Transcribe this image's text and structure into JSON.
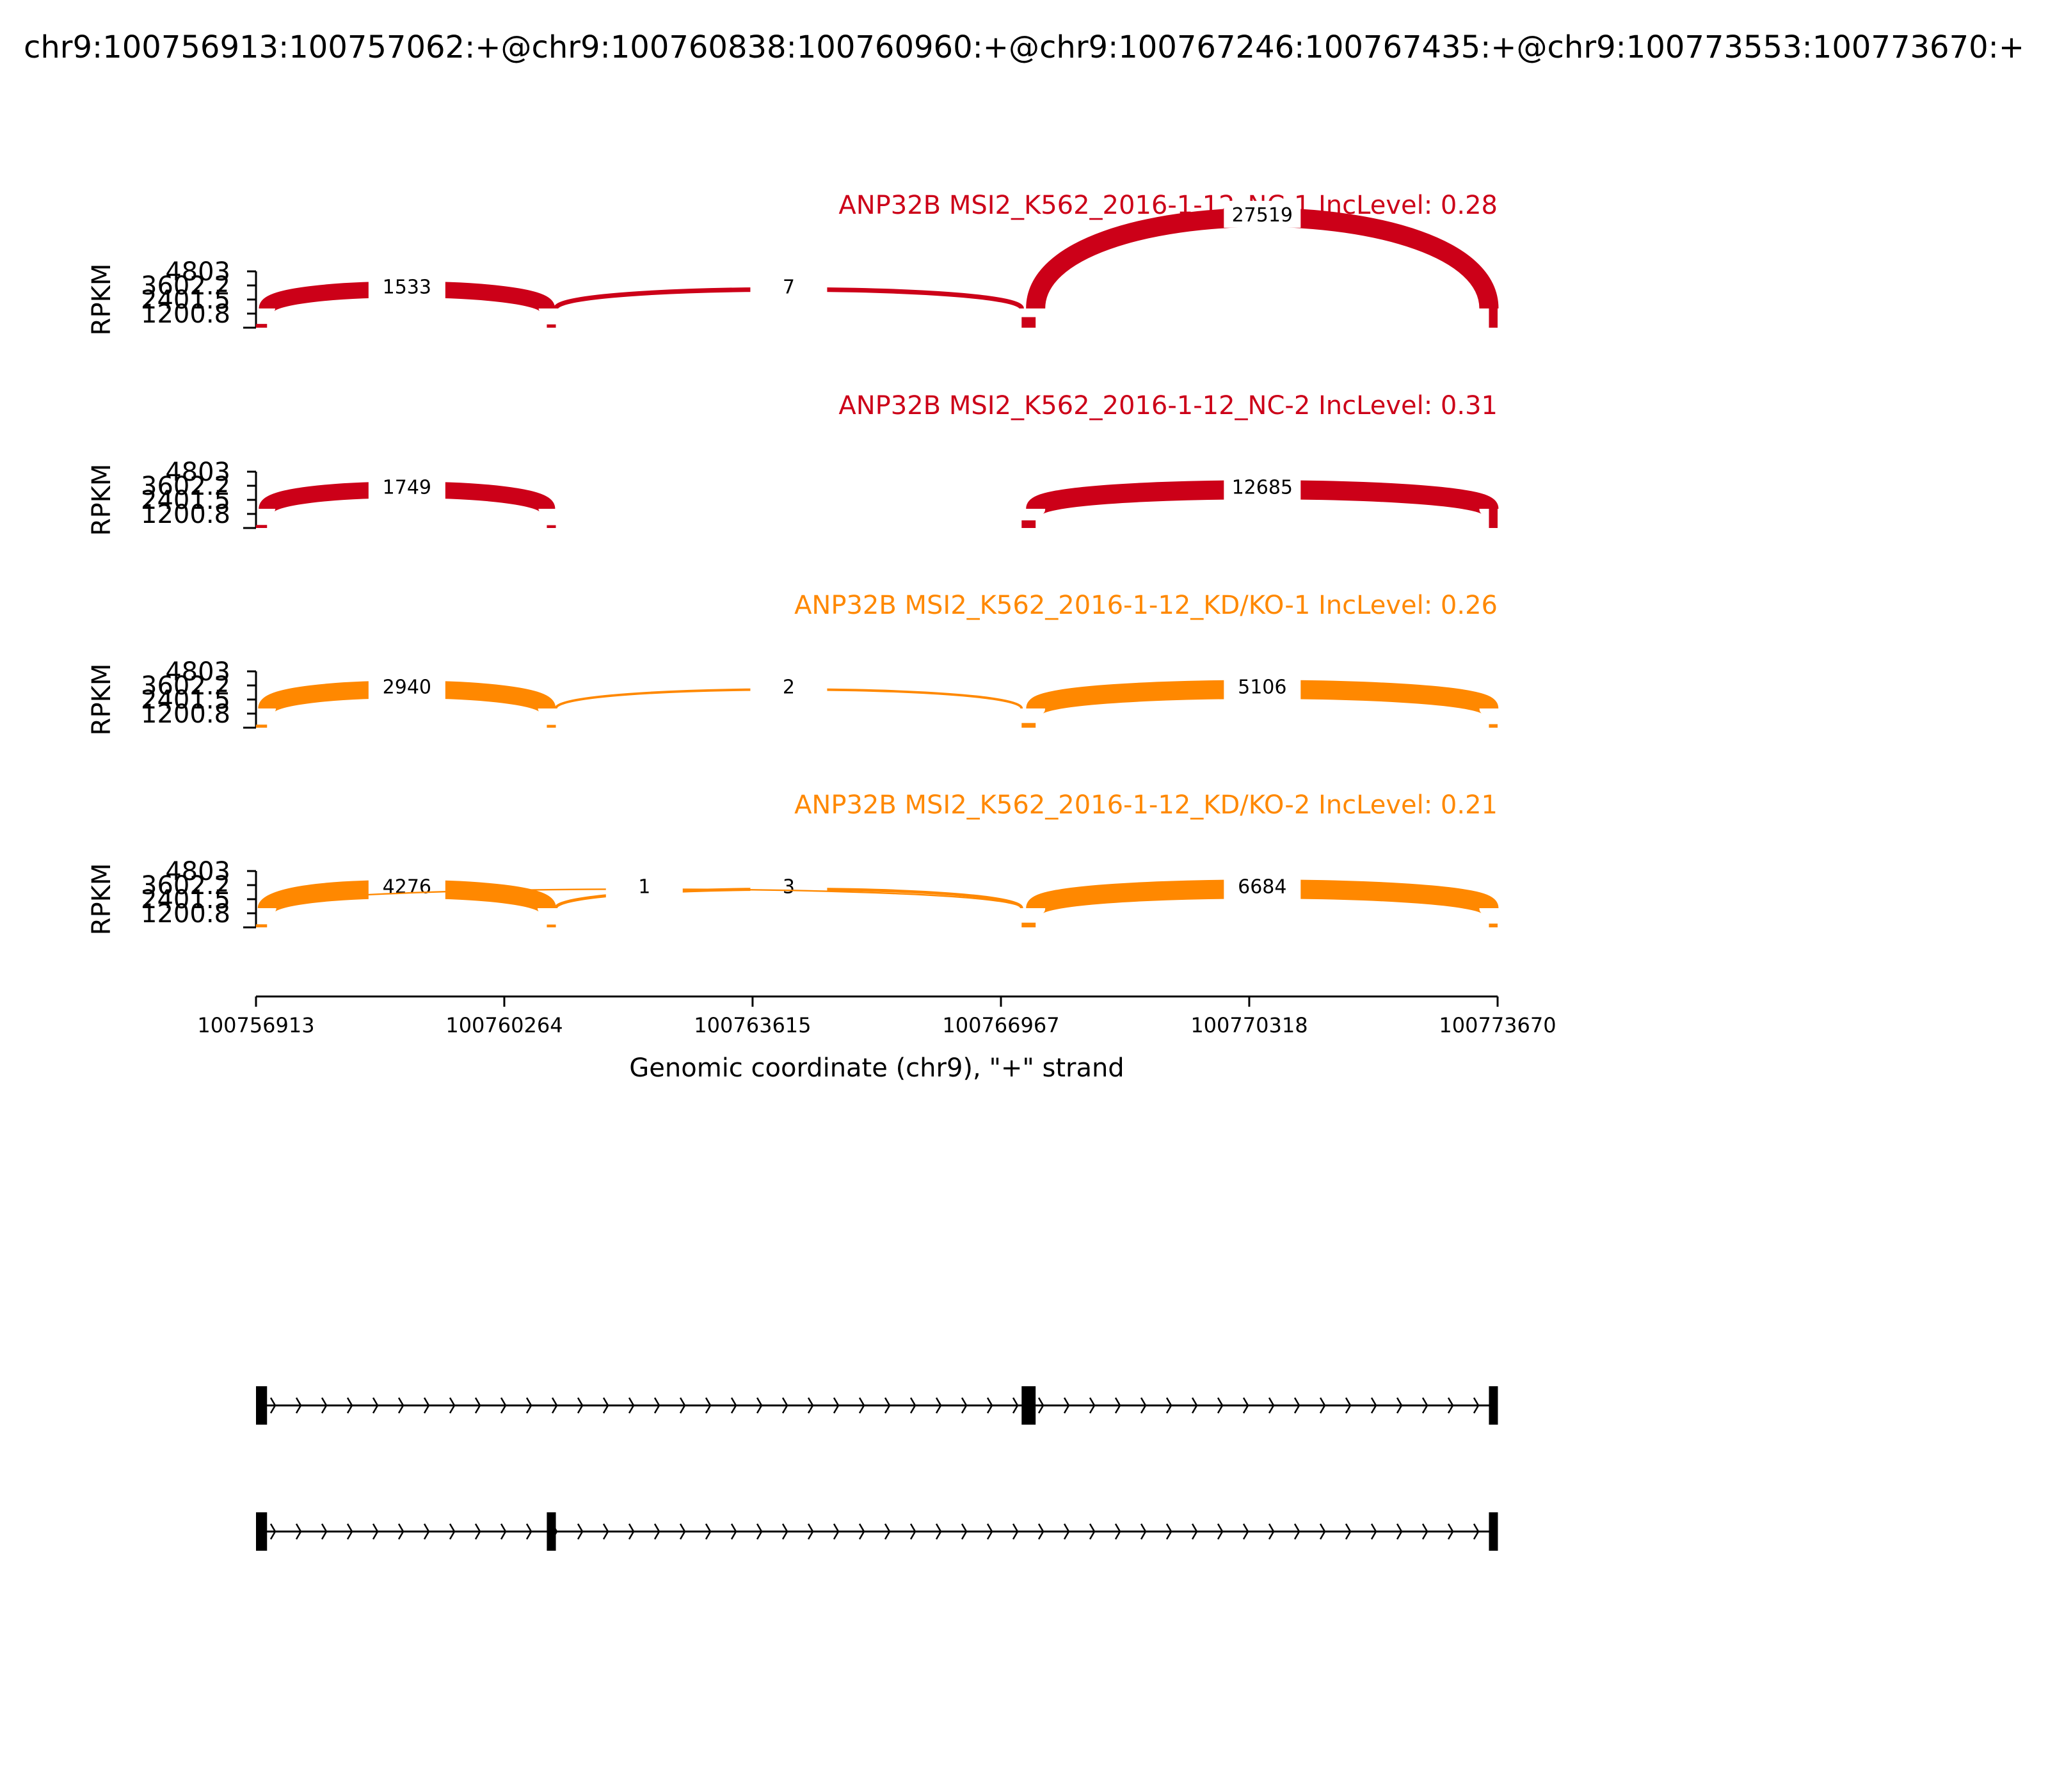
{
  "chart_data": {
    "type": "area",
    "title": "chr9:100756913:100757062:+@chr9:100760838:100760960:+@chr9:100767246:100767435:+@chr9:100773553:100773670:+",
    "xlabel": "Genomic coordinate (chr9), \"+\" strand",
    "ylabel": "RPKM",
    "xlim": [
      100756913,
      100773670
    ],
    "ylim": [
      0,
      4803
    ],
    "x_ticks": [
      "100756913",
      "100760264",
      "100763615",
      "100766967",
      "100770318",
      "100773670"
    ],
    "y_ticks": [
      "4803",
      "3602.2",
      "2401.5",
      "1200.8"
    ],
    "exons": [
      {
        "start": 100756913,
        "end": 100757062
      },
      {
        "start": 100760838,
        "end": 100760960
      },
      {
        "start": 100767246,
        "end": 100767435
      },
      {
        "start": 100773553,
        "end": 100773670
      }
    ],
    "colors": {
      "control": "#cc0018",
      "knockdown": "#ff8800"
    },
    "panels": [
      {
        "label": "ANP32B MSI2_K562_2016-1-12_NC-1 IncLevel: 0.28",
        "group": "control",
        "coverage": [
          320,
          280,
          900,
          2450
        ],
        "junctions": [
          {
            "from": 100757062,
            "to": 100760838,
            "count": "1533",
            "side": "above"
          },
          {
            "from": 100760960,
            "to": 100767246,
            "count": "7",
            "side": "above"
          },
          {
            "from": 100767435,
            "to": 100773553,
            "count": "27519",
            "side": "above"
          }
        ]
      },
      {
        "label": "ANP32B MSI2_K562_2016-1-12_NC-2 IncLevel: 0.31",
        "group": "control",
        "coverage": [
          260,
          240,
          650,
          1700
        ],
        "junctions": [
          {
            "from": 100757062,
            "to": 100760838,
            "count": "1749",
            "side": "above"
          },
          {
            "from": 100767435,
            "to": 100773553,
            "count": "12685",
            "side": "above"
          }
        ]
      },
      {
        "label": "ANP32B MSI2_K562_2016-1-12_KD/KO-1 IncLevel: 0.26",
        "group": "knockdown",
        "coverage": [
          260,
          240,
          400,
          300
        ],
        "junctions": [
          {
            "from": 100757062,
            "to": 100760838,
            "count": "2940",
            "side": "above"
          },
          {
            "from": 100760960,
            "to": 100767246,
            "count": "2",
            "side": "above"
          },
          {
            "from": 100767435,
            "to": 100773553,
            "count": "5106",
            "side": "above"
          }
        ]
      },
      {
        "label": "ANP32B MSI2_K562_2016-1-12_KD/KO-2 IncLevel: 0.21",
        "group": "knockdown",
        "coverage": [
          260,
          240,
          400,
          320
        ],
        "junctions": [
          {
            "from": 100757062,
            "to": 100760838,
            "count": "4276",
            "side": "above"
          },
          {
            "from": 100760960,
            "to": 100767246,
            "count": "3",
            "side": "above"
          },
          {
            "from": 100757062,
            "to": 100767246,
            "count": "1",
            "side": "above"
          },
          {
            "from": 100767435,
            "to": 100773553,
            "count": "6684",
            "side": "above"
          }
        ]
      }
    ],
    "isoforms": [
      {
        "exons": [
          0,
          2,
          3
        ]
      },
      {
        "exons": [
          0,
          1,
          3
        ]
      }
    ]
  }
}
